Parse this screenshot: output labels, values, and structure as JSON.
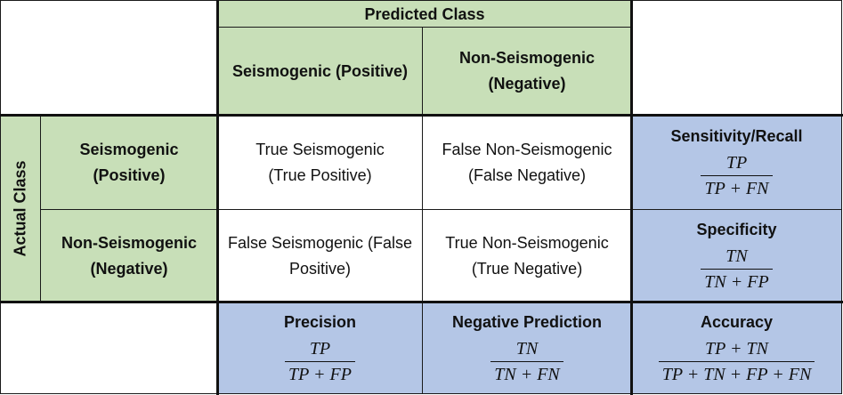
{
  "header": {
    "predicted_class": "Predicted Class",
    "actual_class": "Actual Class"
  },
  "columns": [
    {
      "line1": "Seismogenic (Positive)",
      "line2": ""
    },
    {
      "line1": "Non-Seismogenic",
      "line2": "(Negative)"
    }
  ],
  "rows": [
    {
      "line1": "Seismogenic",
      "line2": "(Positive)"
    },
    {
      "line1": "Non-Seismogenic",
      "line2": "(Negative)"
    }
  ],
  "matrix": [
    [
      {
        "line1": "True Seismogenic",
        "line2": "(True Positive)"
      },
      {
        "line1": "False Non-Seismogenic",
        "line2": "(False Negative)"
      }
    ],
    [
      {
        "line1": "False Seismogenic (False",
        "line2": "Positive)"
      },
      {
        "line1": "True Non-Seismogenic",
        "line2": "(True Negative)"
      }
    ]
  ],
  "metrics": {
    "sensitivity": {
      "title": "Sensitivity/Recall",
      "num": "TP",
      "den": "TP + FN"
    },
    "specificity": {
      "title": "Specificity",
      "num": "TN",
      "den": "TN + FP"
    },
    "precision": {
      "title": "Precision",
      "num": "TP",
      "den": "TP + FP"
    },
    "negative_prediction": {
      "title": "Negative Prediction",
      "num": "TN",
      "den": "TN + FN"
    },
    "accuracy": {
      "title": "Accuracy",
      "num": "TP + TN",
      "den": "TP + TN + FP + FN"
    }
  },
  "colors": {
    "green": "#c8dfb8",
    "blue": "#b4c6e6"
  }
}
